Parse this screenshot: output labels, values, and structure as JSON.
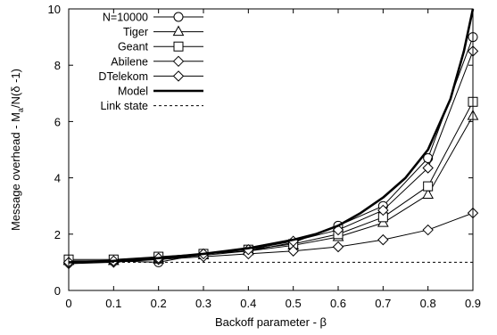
{
  "chart_data": {
    "type": "line",
    "xlabel": "Backoff parameter - β",
    "ylabel_parts": {
      "main": "Message overhead - M",
      "sub": "a",
      "tail": "/N(δ -1)"
    },
    "xlim": [
      0,
      0.9
    ],
    "ylim": [
      0,
      10
    ],
    "x_ticks": [
      "0",
      "0.1",
      "0.2",
      "0.3",
      "0.4",
      "0.5",
      "0.6",
      "0.7",
      "0.8",
      "0.9"
    ],
    "y_ticks": [
      "0",
      "2",
      "4",
      "6",
      "8",
      "10"
    ],
    "grid": false,
    "legend_position": "top-left",
    "x": [
      0,
      0.1,
      0.2,
      0.3,
      0.4,
      0.5,
      0.6,
      0.7,
      0.8,
      0.9
    ],
    "series": [
      {
        "name": "N=10000",
        "marker": "circle",
        "line_width": 1,
        "dash": "",
        "values": [
          1.05,
          1.05,
          1.0,
          1.3,
          1.4,
          1.7,
          2.3,
          3.0,
          4.7,
          9.0
        ]
      },
      {
        "name": "Tiger",
        "marker": "triangle",
        "line_width": 1,
        "dash": "",
        "values": [
          1.05,
          1.05,
          1.1,
          1.25,
          1.4,
          1.6,
          1.9,
          2.4,
          3.4,
          6.2
        ]
      },
      {
        "name": "Geant",
        "marker": "square",
        "line_width": 1,
        "dash": "",
        "values": [
          1.1,
          1.1,
          1.2,
          1.3,
          1.45,
          1.65,
          2.0,
          2.6,
          3.7,
          6.7
        ]
      },
      {
        "name": "Abilene",
        "marker": "diamond",
        "line_width": 1,
        "dash": "",
        "values": [
          0.95,
          1.0,
          1.1,
          1.2,
          1.3,
          1.4,
          1.55,
          1.8,
          2.15,
          2.75
        ]
      },
      {
        "name": "DTelekom",
        "marker": "diamond",
        "line_width": 1,
        "dash": "",
        "values": [
          1.0,
          1.05,
          1.15,
          1.3,
          1.45,
          1.75,
          2.15,
          2.85,
          4.35,
          8.5
        ]
      },
      {
        "name": "Model",
        "marker": "none",
        "line_width": 2.6,
        "dash": "",
        "curve": [
          [
            0,
            1.0
          ],
          [
            0.1,
            1.05
          ],
          [
            0.2,
            1.15
          ],
          [
            0.3,
            1.3
          ],
          [
            0.4,
            1.5
          ],
          [
            0.5,
            1.8
          ],
          [
            0.55,
            2.0
          ],
          [
            0.6,
            2.3
          ],
          [
            0.65,
            2.75
          ],
          [
            0.7,
            3.3
          ],
          [
            0.75,
            4.0
          ],
          [
            0.8,
            5.0
          ],
          [
            0.85,
            6.8
          ],
          [
            0.88,
            8.5
          ],
          [
            0.9,
            10.0
          ]
        ]
      },
      {
        "name": "Link state",
        "marker": "none",
        "line_width": 1,
        "dash": "3,3",
        "curve": [
          [
            0,
            1.0
          ],
          [
            0.9,
            1.0
          ]
        ]
      }
    ]
  }
}
